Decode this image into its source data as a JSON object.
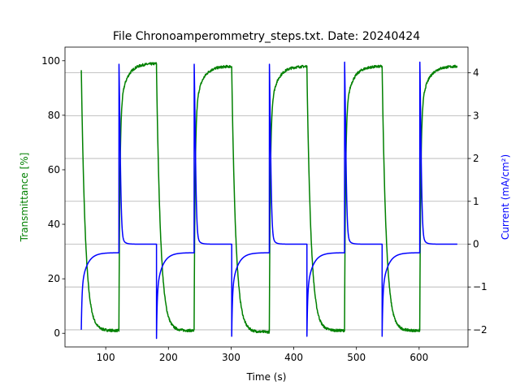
{
  "chart_data": {
    "type": "line",
    "title": "File Chronoamperommetry_steps.txt. Date: 20240424",
    "xlabel": "Time (s)",
    "ylabel_left": "Transmittance [%]",
    "ylabel_right": "Current (mA/cm²)",
    "xlim": [
      35,
      678
    ],
    "ylim_left": [
      -5,
      105
    ],
    "ylim_right": [
      -2.4,
      4.6
    ],
    "x_ticks": [
      100,
      200,
      300,
      400,
      500,
      600
    ],
    "y_ticks_left": [
      0,
      20,
      40,
      60,
      80,
      100
    ],
    "y_ticks_right": [
      -2,
      -1,
      0,
      1,
      2,
      3,
      4
    ],
    "grid": "horizontal-right-axis",
    "steps": {
      "start": 61,
      "end": 663,
      "period": 60,
      "first_state": "bleach"
    },
    "series": [
      {
        "name": "Transmittance",
        "axis": "left",
        "color": "#008000",
        "bleach_states": [
          {
            "t_start": 61,
            "T_start": 97,
            "T_end": 1.0
          },
          {
            "t_start": 181,
            "T_start": 97,
            "T_end": 1.0
          },
          {
            "t_start": 301,
            "T_start": 97,
            "T_end": 0.5
          },
          {
            "t_start": 421,
            "T_start": 97,
            "T_end": 1.0
          },
          {
            "t_start": 541,
            "T_start": 97,
            "T_end": 1.0
          }
        ],
        "color_states": [
          {
            "t_start": 121,
            "T_end": 99
          },
          {
            "t_start": 241,
            "T_end": 98
          },
          {
            "t_start": 361,
            "T_end": 98
          },
          {
            "t_start": 481,
            "T_end": 98
          },
          {
            "t_start": 601,
            "T_end": 98
          }
        ]
      },
      {
        "name": "Current",
        "axis": "right",
        "color": "#0000ff",
        "negative_steps": [
          {
            "t_start": 61,
            "I_min": -2.0,
            "I_end": -0.2
          },
          {
            "t_start": 181,
            "I_min": -2.2,
            "I_end": -0.2
          },
          {
            "t_start": 301,
            "I_min": -2.15,
            "I_end": -0.2
          },
          {
            "t_start": 421,
            "I_min": -2.15,
            "I_end": -0.2
          },
          {
            "t_start": 541,
            "I_min": -2.15,
            "I_end": -0.2
          }
        ],
        "positive_steps": [
          {
            "t_start": 121,
            "I_max": 4.2,
            "I_end": 0.0
          },
          {
            "t_start": 241,
            "I_max": 4.2,
            "I_end": 0.0
          },
          {
            "t_start": 361,
            "I_max": 4.2,
            "I_end": 0.0
          },
          {
            "t_start": 481,
            "I_max": 4.25,
            "I_end": 0.0
          },
          {
            "t_start": 601,
            "I_max": 4.25,
            "I_end": 0.0
          }
        ]
      }
    ]
  }
}
